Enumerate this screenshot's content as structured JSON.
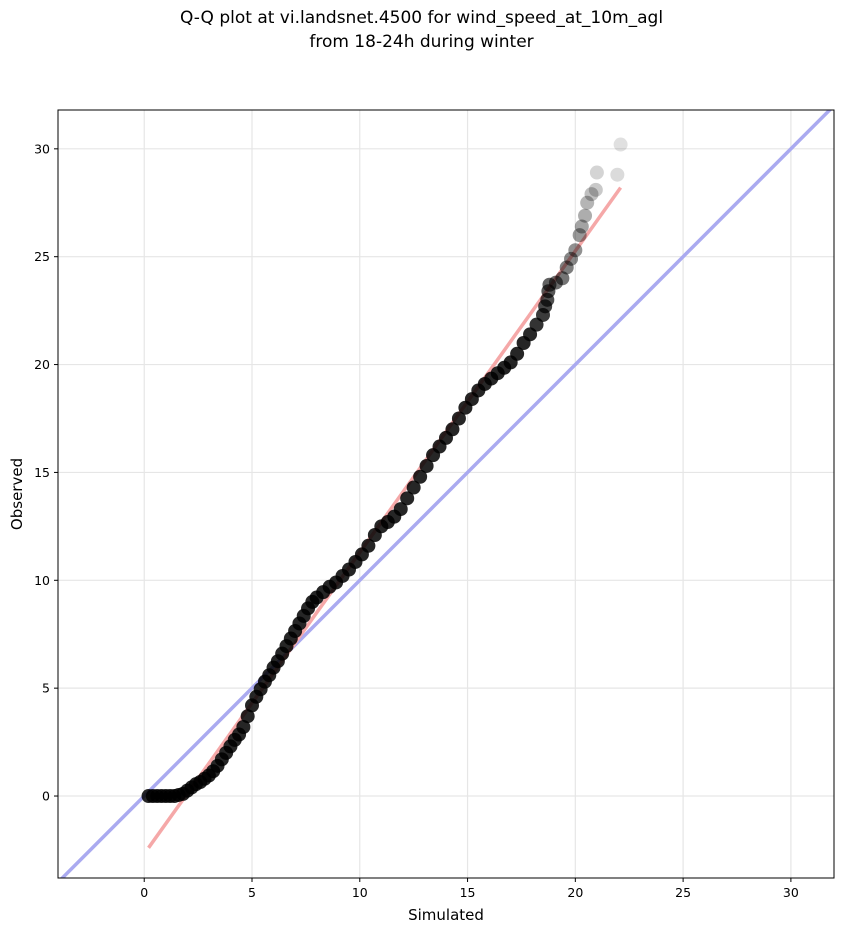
{
  "chart_data": {
    "type": "scatter",
    "title_lines": [
      "Q-Q plot at vi.landsnet.4500 for wind_speed_at_10m_agl",
      "from 18-24h during winter"
    ],
    "xlabel": "Simulated",
    "ylabel": "Observed",
    "xlim": [
      -4,
      32
    ],
    "ylim": [
      -3.8,
      31.8
    ],
    "xticks": [
      0,
      5,
      10,
      15,
      20,
      25,
      30
    ],
    "yticks": [
      0,
      5,
      10,
      15,
      20,
      25,
      30
    ],
    "xtick_labels": [
      "0",
      "5",
      "10",
      "15",
      "20",
      "25",
      "30"
    ],
    "ytick_labels": [
      "0",
      "5",
      "10",
      "15",
      "20",
      "25",
      "30"
    ],
    "grid": true,
    "series": [
      {
        "kind": "identity_line",
        "color": "#aaaaf0",
        "x": [
          -4,
          32
        ],
        "y": [
          -4,
          32
        ]
      },
      {
        "kind": "fit_line",
        "color": "#f5a8a8",
        "x": [
          0.2,
          22.1
        ],
        "y": [
          -2.4,
          28.2
        ]
      },
      {
        "kind": "quantile_points",
        "color": "#000000",
        "points": [
          [
            0.2,
            0.0
          ],
          [
            0.4,
            0.0
          ],
          [
            0.6,
            0.0
          ],
          [
            0.8,
            0.0
          ],
          [
            1.0,
            0.0
          ],
          [
            1.2,
            0.0
          ],
          [
            1.4,
            0.0
          ],
          [
            1.6,
            0.05
          ],
          [
            1.8,
            0.1
          ],
          [
            2.0,
            0.25
          ],
          [
            2.2,
            0.4
          ],
          [
            2.4,
            0.55
          ],
          [
            2.6,
            0.65
          ],
          [
            2.8,
            0.8
          ],
          [
            3.0,
            0.95
          ],
          [
            3.2,
            1.15
          ],
          [
            3.4,
            1.4
          ],
          [
            3.6,
            1.7
          ],
          [
            3.8,
            2.0
          ],
          [
            4.0,
            2.3
          ],
          [
            4.2,
            2.6
          ],
          [
            4.4,
            2.85
          ],
          [
            4.6,
            3.2
          ],
          [
            4.8,
            3.7
          ],
          [
            5.0,
            4.2
          ],
          [
            5.2,
            4.6
          ],
          [
            5.4,
            4.95
          ],
          [
            5.6,
            5.3
          ],
          [
            5.8,
            5.6
          ],
          [
            6.0,
            5.95
          ],
          [
            6.2,
            6.25
          ],
          [
            6.4,
            6.6
          ],
          [
            6.6,
            6.95
          ],
          [
            6.8,
            7.3
          ],
          [
            7.0,
            7.65
          ],
          [
            7.2,
            8.0
          ],
          [
            7.4,
            8.35
          ],
          [
            7.6,
            8.7
          ],
          [
            7.8,
            9.0
          ],
          [
            8.0,
            9.2
          ],
          [
            8.3,
            9.45
          ],
          [
            8.6,
            9.7
          ],
          [
            8.9,
            9.9
          ],
          [
            9.2,
            10.2
          ],
          [
            9.5,
            10.5
          ],
          [
            9.8,
            10.85
          ],
          [
            10.1,
            11.2
          ],
          [
            10.4,
            11.6
          ],
          [
            10.7,
            12.1
          ],
          [
            11.0,
            12.5
          ],
          [
            11.3,
            12.7
          ],
          [
            11.6,
            12.95
          ],
          [
            11.9,
            13.3
          ],
          [
            12.2,
            13.8
          ],
          [
            12.5,
            14.3
          ],
          [
            12.8,
            14.8
          ],
          [
            13.1,
            15.3
          ],
          [
            13.4,
            15.8
          ],
          [
            13.7,
            16.2
          ],
          [
            14.0,
            16.6
          ],
          [
            14.3,
            17.0
          ],
          [
            14.6,
            17.5
          ],
          [
            14.9,
            18.0
          ],
          [
            15.2,
            18.4
          ],
          [
            15.5,
            18.8
          ],
          [
            15.8,
            19.1
          ],
          [
            16.1,
            19.35
          ],
          [
            16.4,
            19.6
          ],
          [
            16.7,
            19.85
          ],
          [
            17.0,
            20.1
          ],
          [
            17.3,
            20.5
          ],
          [
            17.6,
            21.0
          ],
          [
            17.9,
            21.4
          ],
          [
            18.2,
            21.85
          ],
          [
            18.5,
            22.3
          ],
          [
            18.6,
            22.7
          ],
          [
            18.7,
            23.0
          ],
          [
            18.75,
            23.4
          ],
          [
            18.8,
            23.7
          ],
          [
            19.1,
            23.8
          ],
          [
            19.4,
            24.0
          ],
          [
            19.6,
            24.5
          ],
          [
            19.8,
            24.9
          ],
          [
            20.0,
            25.3
          ],
          [
            20.2,
            26.0
          ],
          [
            20.3,
            26.4
          ],
          [
            20.45,
            26.9
          ],
          [
            20.55,
            27.5
          ],
          [
            20.75,
            27.9
          ],
          [
            20.95,
            28.1
          ],
          [
            21.0,
            28.9
          ],
          [
            21.95,
            28.8
          ],
          [
            22.1,
            30.2
          ]
        ]
      }
    ]
  }
}
